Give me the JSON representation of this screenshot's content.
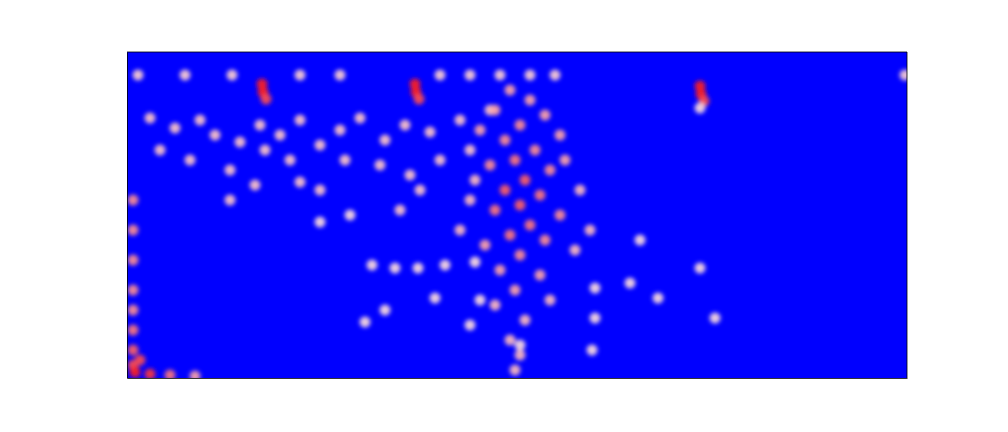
{
  "chart_data": {
    "type": "scatter",
    "x": [
      135,
      136,
      139,
      288,
      289,
      292,
      573,
      574,
      577,
      6,
      6,
      6,
      6,
      6,
      6,
      6,
      6,
      8,
      23,
      43,
      68,
      13,
      11,
      58,
      105,
      173,
      213,
      313,
      343,
      373,
      403,
      428,
      778,
      23,
      48,
      73,
      88,
      113,
      133,
      153,
      173,
      193,
      213,
      233,
      258,
      278,
      303,
      33,
      63,
      103,
      128,
      173,
      193,
      218,
      253,
      283,
      313,
      138,
      163,
      103,
      273,
      293,
      343,
      333,
      363,
      383,
      403,
      368,
      418,
      393,
      353,
      433,
      378,
      408,
      388,
      363,
      423,
      398,
      378,
      413,
      393,
      368,
      433,
      403,
      383,
      418,
      358,
      393,
      373,
      413,
      388,
      423,
      368,
      398,
      383,
      393,
      388,
      343,
      453,
      448,
      333,
      463,
      438,
      348,
      245,
      268,
      291,
      318,
      348,
      258,
      308,
      353,
      238,
      343,
      393,
      468,
      468,
      465,
      503,
      531,
      573,
      588,
      513,
      223,
      193,
      573
    ],
    "values": [
      294,
      286,
      279,
      294,
      286,
      279,
      292,
      284,
      277,
      178,
      148,
      118,
      88,
      68,
      48,
      28,
      13,
      6,
      4,
      3,
      2,
      18,
      303,
      303,
      303,
      303,
      303,
      303,
      303,
      303,
      303,
      303,
      303,
      260,
      250,
      258,
      243,
      236,
      253,
      243,
      258,
      233,
      248,
      260,
      238,
      253,
      246,
      228,
      218,
      208,
      193,
      196,
      188,
      218,
      213,
      203,
      218,
      228,
      218,
      178,
      168,
      188,
      228,
      258,
      268,
      288,
      278,
      268,
      263,
      253,
      248,
      243,
      238,
      228,
      218,
      213,
      208,
      198,
      188,
      183,
      173,
      168,
      163,
      153,
      143,
      138,
      133,
      123,
      108,
      103,
      88,
      78,
      73,
      58,
      38,
      23,
      8,
      178,
      188,
      128,
      148,
      148,
      218,
      198,
      113,
      110,
      110,
      113,
      116,
      68,
      80,
      78,
      56,
      53,
      33,
      90,
      60,
      28,
      95,
      80,
      110,
      60,
      138,
      163,
      156,
      270
    ],
    "intensity": [
      1,
      1,
      0.8,
      1,
      1,
      0.8,
      1,
      1,
      0.8,
      0.5,
      0.5,
      0.5,
      0.5,
      0.5,
      0.6,
      0.7,
      0.8,
      1,
      0.9,
      0.6,
      0.4,
      0.8,
      0.2,
      0.2,
      0.2,
      0.2,
      0.2,
      0.2,
      0.2,
      0.2,
      0.2,
      0.2,
      0.2,
      0.25,
      0.25,
      0.25,
      0.25,
      0.25,
      0.25,
      0.25,
      0.25,
      0.25,
      0.25,
      0.25,
      0.25,
      0.25,
      0.25,
      0.25,
      0.25,
      0.25,
      0.25,
      0.25,
      0.25,
      0.25,
      0.25,
      0.25,
      0.25,
      0.25,
      0.25,
      0.25,
      0.25,
      0.25,
      0.25,
      0.25,
      0.25,
      0.4,
      0.4,
      0.4,
      0.4,
      0.5,
      0.4,
      0.4,
      0.5,
      0.5,
      0.6,
      0.5,
      0.5,
      0.7,
      0.7,
      0.6,
      0.7,
      0.6,
      0.5,
      0.6,
      0.6,
      0.5,
      0.4,
      0.5,
      0.4,
      0.4,
      0.4,
      0.3,
      0.3,
      0.3,
      0.3,
      0.3,
      0.3,
      0.3,
      0.3,
      0.3,
      0.3,
      0.3,
      0.4,
      0.3,
      0.15,
      0.15,
      0.15,
      0.15,
      0.15,
      0.15,
      0.15,
      0.15,
      0.15,
      0.15,
      0.15,
      0.15,
      0.15,
      0.15,
      0.15,
      0.15,
      0.15,
      0.15,
      0.15,
      0.15,
      0.15,
      0.15
    ],
    "intensity_range": [
      0,
      1
    ],
    "xlim": [
      0,
      780
    ],
    "ylim": [
      0,
      326
    ],
    "xticks": [],
    "yticks": [],
    "tick_labels": false,
    "color": "#0000ff",
    "marker": "circle"
  }
}
